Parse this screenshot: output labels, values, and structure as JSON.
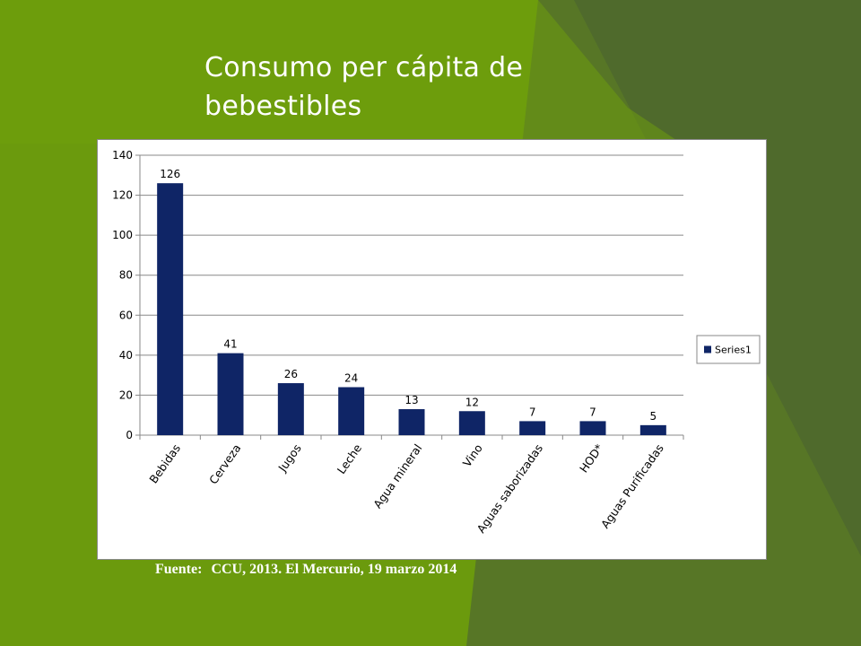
{
  "slide": {
    "background": "#6b9a0d",
    "title_lines": [
      "Consumo per cápita de",
      "bebestibles"
    ],
    "source_label": "Fuente:",
    "source_text": "CCU, 2013. El Mercurio, 19 marzo 2014"
  },
  "chart_data": {
    "type": "bar",
    "categories": [
      "Bebidas",
      "Cerveza",
      "Jugos",
      "Leche",
      "Agua mineral",
      "Vino",
      "Aguas saborizadas",
      "HOD*",
      "Aguas Purificadas"
    ],
    "series": [
      {
        "name": "Series1",
        "values": [
          126,
          41,
          26,
          24,
          13,
          12,
          7,
          7,
          5
        ],
        "color": "#0f2566"
      }
    ],
    "data_labels": [
      "126",
      "41",
      "26",
      "24",
      "13",
      "12",
      "7",
      "7",
      "5"
    ],
    "ylim": [
      0,
      140
    ],
    "yticks": [
      0,
      20,
      40,
      60,
      80,
      100,
      120,
      140
    ],
    "ytick_labels": [
      "0",
      "20",
      "40",
      "60",
      "80",
      "100",
      "120",
      "140"
    ],
    "grid": true,
    "legend_position": "right",
    "xlabel": "",
    "ylabel": ""
  }
}
